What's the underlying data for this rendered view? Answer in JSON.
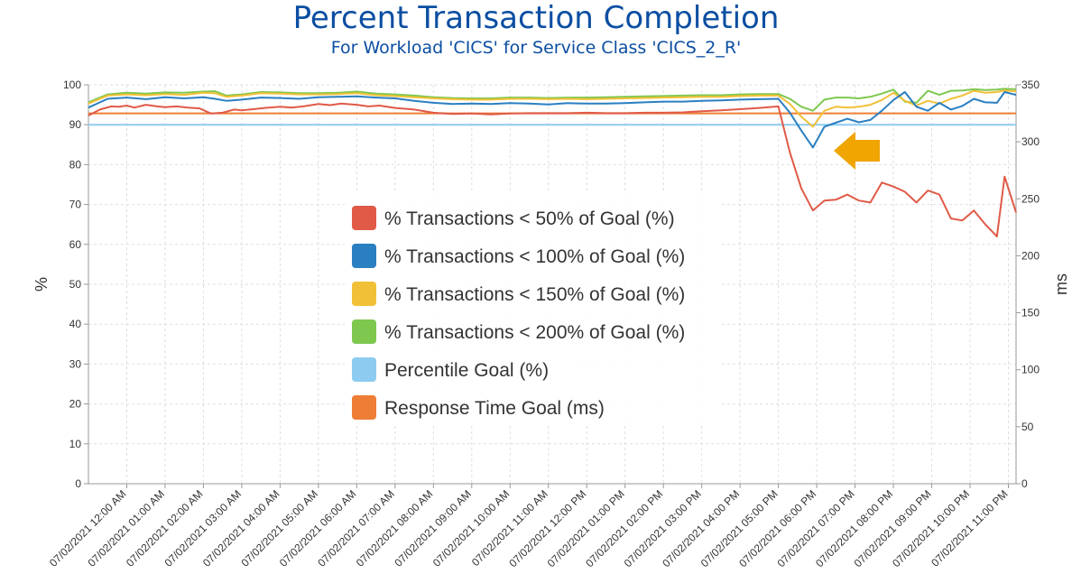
{
  "chart_data": {
    "type": "line",
    "title": "Percent Transaction Completion",
    "subtitle": "For Workload 'CICS' for Service Class 'CICS_2_R'",
    "ylabel": "%",
    "y2label": "ms",
    "ylim": [
      0,
      100
    ],
    "y2lim": [
      0,
      350
    ],
    "yticks": [
      "0",
      "10",
      "20",
      "30",
      "40",
      "50",
      "60",
      "70",
      "80",
      "90",
      "100"
    ],
    "y2ticks": [
      "0",
      "50",
      "100",
      "150",
      "200",
      "250",
      "300",
      "350"
    ],
    "xlabels": [
      "07/02/2021 12:00 AM",
      "07/02/2021 01:00 AM",
      "07/02/2021 02:00 AM",
      "07/02/2021 03:00 AM",
      "07/02/2021 04:00 AM",
      "07/02/2021 05:00 AM",
      "07/02/2021 06:00 AM",
      "07/02/2021 07:00 AM",
      "07/02/2021 08:00 AM",
      "07/02/2021 09:00 AM",
      "07/02/2021 10:00 AM",
      "07/02/2021 11:00 AM",
      "07/02/2021 12:00 PM",
      "07/02/2021 01:00 PM",
      "07/02/2021 02:00 PM",
      "07/02/2021 03:00 PM",
      "07/02/2021 04:00 PM",
      "07/02/2021 05:00 PM",
      "07/02/2021 06:00 PM",
      "07/02/2021 07:00 PM",
      "07/02/2021 08:00 PM",
      "07/02/2021 09:00 PM",
      "07/02/2021 10:00 PM",
      "07/02/2021 11:00 PM"
    ],
    "grid": true,
    "legend_position": "center",
    "annotation": "arrow-left-icon",
    "annotation_color": "#f0a500",
    "series": [
      {
        "name": "% Transactions < 50% of Goal (%)",
        "color": "#e05a47",
        "axis": "left",
        "x": [
          0,
          0.3,
          0.6,
          0.8,
          1,
          1.2,
          1.5,
          1.8,
          2,
          2.3,
          2.6,
          2.9,
          3.2,
          3.5,
          3.8,
          4,
          4.3,
          4.6,
          5,
          5.3,
          5.6,
          6,
          6.3,
          6.6,
          7,
          7.3,
          7.6,
          8,
          8.5,
          9,
          9.5,
          10,
          10.5,
          11,
          11.5,
          12,
          12.5,
          13,
          13.5,
          14,
          14.5,
          15,
          15.5,
          16,
          16.5,
          17,
          17.5,
          18,
          18.3,
          18.6,
          18.9,
          19.2,
          19.5,
          19.8,
          20.1,
          20.4,
          20.7,
          21,
          21.3,
          21.6,
          21.9,
          22.2,
          22.5,
          22.8,
          23.1,
          23.4,
          23.7,
          23.9,
          24.2
        ],
        "values": [
          92.3,
          93.8,
          94.6,
          94.5,
          94.8,
          94.3,
          95.0,
          94.6,
          94.4,
          94.6,
          94.3,
          94.1,
          92.8,
          93.0,
          93.8,
          93.6,
          93.9,
          94.2,
          94.5,
          94.3,
          94.6,
          95.2,
          94.9,
          95.3,
          95.0,
          94.6,
          94.8,
          94.2,
          93.8,
          93.0,
          92.7,
          92.8,
          92.6,
          92.8,
          92.9,
          92.9,
          92.9,
          93.0,
          92.9,
          92.9,
          93.0,
          93.0,
          93.1,
          93.4,
          93.6,
          93.9,
          94.2,
          94.6,
          83.0,
          74.0,
          68.5,
          71.0,
          71.2,
          72.5,
          71.0,
          70.5,
          75.5,
          74.5,
          73.2,
          70.5,
          73.5,
          72.5,
          66.5,
          66.0,
          68.5,
          65.0,
          62.0,
          77.0,
          68.0
        ]
      },
      {
        "name": "% Transactions < 100% of Goal (%)",
        "color": "#2a7fc1",
        "axis": "left",
        "x": [
          0,
          0.5,
          1,
          1.5,
          2,
          2.5,
          3,
          3.3,
          3.6,
          4,
          4.5,
          5,
          5.5,
          6,
          6.5,
          7,
          7.5,
          8,
          8.5,
          9,
          9.5,
          10,
          10.5,
          11,
          11.5,
          12,
          12.5,
          13,
          13.5,
          14,
          14.5,
          15,
          15.5,
          16,
          16.5,
          17,
          17.5,
          18,
          18.3,
          18.6,
          18.9,
          19.2,
          19.5,
          19.8,
          20.1,
          20.4,
          20.7,
          21,
          21.3,
          21.6,
          21.9,
          22.2,
          22.5,
          22.8,
          23.1,
          23.4,
          23.7,
          23.9,
          24.2
        ],
        "values": [
          94.3,
          96.5,
          96.8,
          96.4,
          96.9,
          96.6,
          96.9,
          96.5,
          96.0,
          96.3,
          96.8,
          96.7,
          96.5,
          96.9,
          97.0,
          97.1,
          96.8,
          96.6,
          96.0,
          95.5,
          95.2,
          95.3,
          95.2,
          95.4,
          95.3,
          95.1,
          95.4,
          95.3,
          95.3,
          95.4,
          95.6,
          95.8,
          95.8,
          96.0,
          96.1,
          96.3,
          96.4,
          96.5,
          93.0,
          88.5,
          84.3,
          89.5,
          90.5,
          91.5,
          90.6,
          91.2,
          93.5,
          96.2,
          98.2,
          94.5,
          93.5,
          95.5,
          93.8,
          94.7,
          96.5,
          95.6,
          95.5,
          98.2,
          97.5
        ]
      },
      {
        "name": "% Transactions < 150% of Goal (%)",
        "color": "#f2c037",
        "axis": "left",
        "x": [
          0,
          0.5,
          1,
          1.5,
          2,
          2.5,
          3,
          3.3,
          3.6,
          4,
          4.5,
          5,
          5.5,
          6,
          6.5,
          7,
          7.5,
          8,
          8.5,
          9,
          9.5,
          10,
          10.5,
          11,
          11.5,
          12,
          12.5,
          13,
          13.5,
          14,
          14.5,
          15,
          15.5,
          16,
          16.5,
          17,
          17.5,
          18,
          18.3,
          18.6,
          18.9,
          19.2,
          19.5,
          19.8,
          20.1,
          20.4,
          20.7,
          21,
          21.3,
          21.6,
          21.9,
          22.2,
          22.5,
          22.8,
          23.1,
          23.4,
          23.7,
          23.9,
          24.2
        ],
        "values": [
          95.3,
          97.3,
          97.6,
          97.4,
          97.7,
          97.5,
          98.0,
          97.9,
          97.0,
          97.3,
          97.9,
          97.8,
          97.6,
          97.6,
          97.7,
          97.9,
          97.4,
          97.2,
          96.9,
          96.6,
          96.4,
          96.3,
          96.3,
          96.5,
          96.5,
          96.4,
          96.5,
          96.4,
          96.5,
          96.6,
          96.7,
          96.8,
          96.9,
          97.0,
          97.0,
          97.2,
          97.3,
          97.3,
          95.2,
          92.0,
          89.5,
          93.5,
          94.5,
          94.3,
          94.5,
          95.0,
          96.2,
          98.0,
          96.0,
          94.8,
          96.0,
          95.3,
          96.5,
          97.3,
          98.5,
          98.0,
          98.2,
          98.6,
          98.4
        ]
      },
      {
        "name": "% Transactions < 200% of Goal (%)",
        "color": "#7ec850",
        "axis": "left",
        "x": [
          0,
          0.5,
          1,
          1.5,
          2,
          2.5,
          3,
          3.3,
          3.6,
          4,
          4.5,
          5,
          5.5,
          6,
          6.5,
          7,
          7.5,
          8,
          8.5,
          9,
          9.5,
          10,
          10.5,
          11,
          11.5,
          12,
          12.5,
          13,
          13.5,
          14,
          14.5,
          15,
          15.5,
          16,
          16.5,
          17,
          17.5,
          18,
          18.3,
          18.6,
          18.9,
          19.2,
          19.5,
          19.8,
          20.1,
          20.4,
          20.7,
          21,
          21.3,
          21.6,
          21.9,
          22.2,
          22.5,
          22.8,
          23.1,
          23.4,
          23.7,
          23.9,
          24.2
        ],
        "values": [
          95.6,
          97.6,
          98.0,
          97.8,
          98.1,
          98.0,
          98.3,
          98.4,
          97.3,
          97.6,
          98.2,
          98.1,
          97.9,
          97.9,
          98.0,
          98.3,
          97.8,
          97.6,
          97.3,
          96.9,
          96.7,
          96.6,
          96.6,
          96.8,
          96.8,
          96.7,
          96.8,
          96.8,
          96.9,
          97.0,
          97.1,
          97.2,
          97.3,
          97.4,
          97.4,
          97.6,
          97.7,
          97.7,
          96.5,
          94.5,
          93.5,
          96.3,
          96.8,
          96.8,
          96.6,
          97.0,
          97.8,
          98.8,
          95.8,
          95.5,
          98.5,
          97.5,
          98.5,
          98.6,
          98.9,
          98.7,
          98.8,
          99.0,
          98.9
        ]
      },
      {
        "name": "Percentile Goal (%)",
        "color": "#8ecbf0",
        "axis": "left",
        "x": [
          0,
          24.2
        ],
        "values": [
          90,
          90
        ]
      },
      {
        "name": "Response Time Goal (ms)",
        "color": "#ee7d35",
        "axis": "right",
        "x": [
          0,
          24.2
        ],
        "values": [
          325,
          325
        ]
      }
    ]
  }
}
